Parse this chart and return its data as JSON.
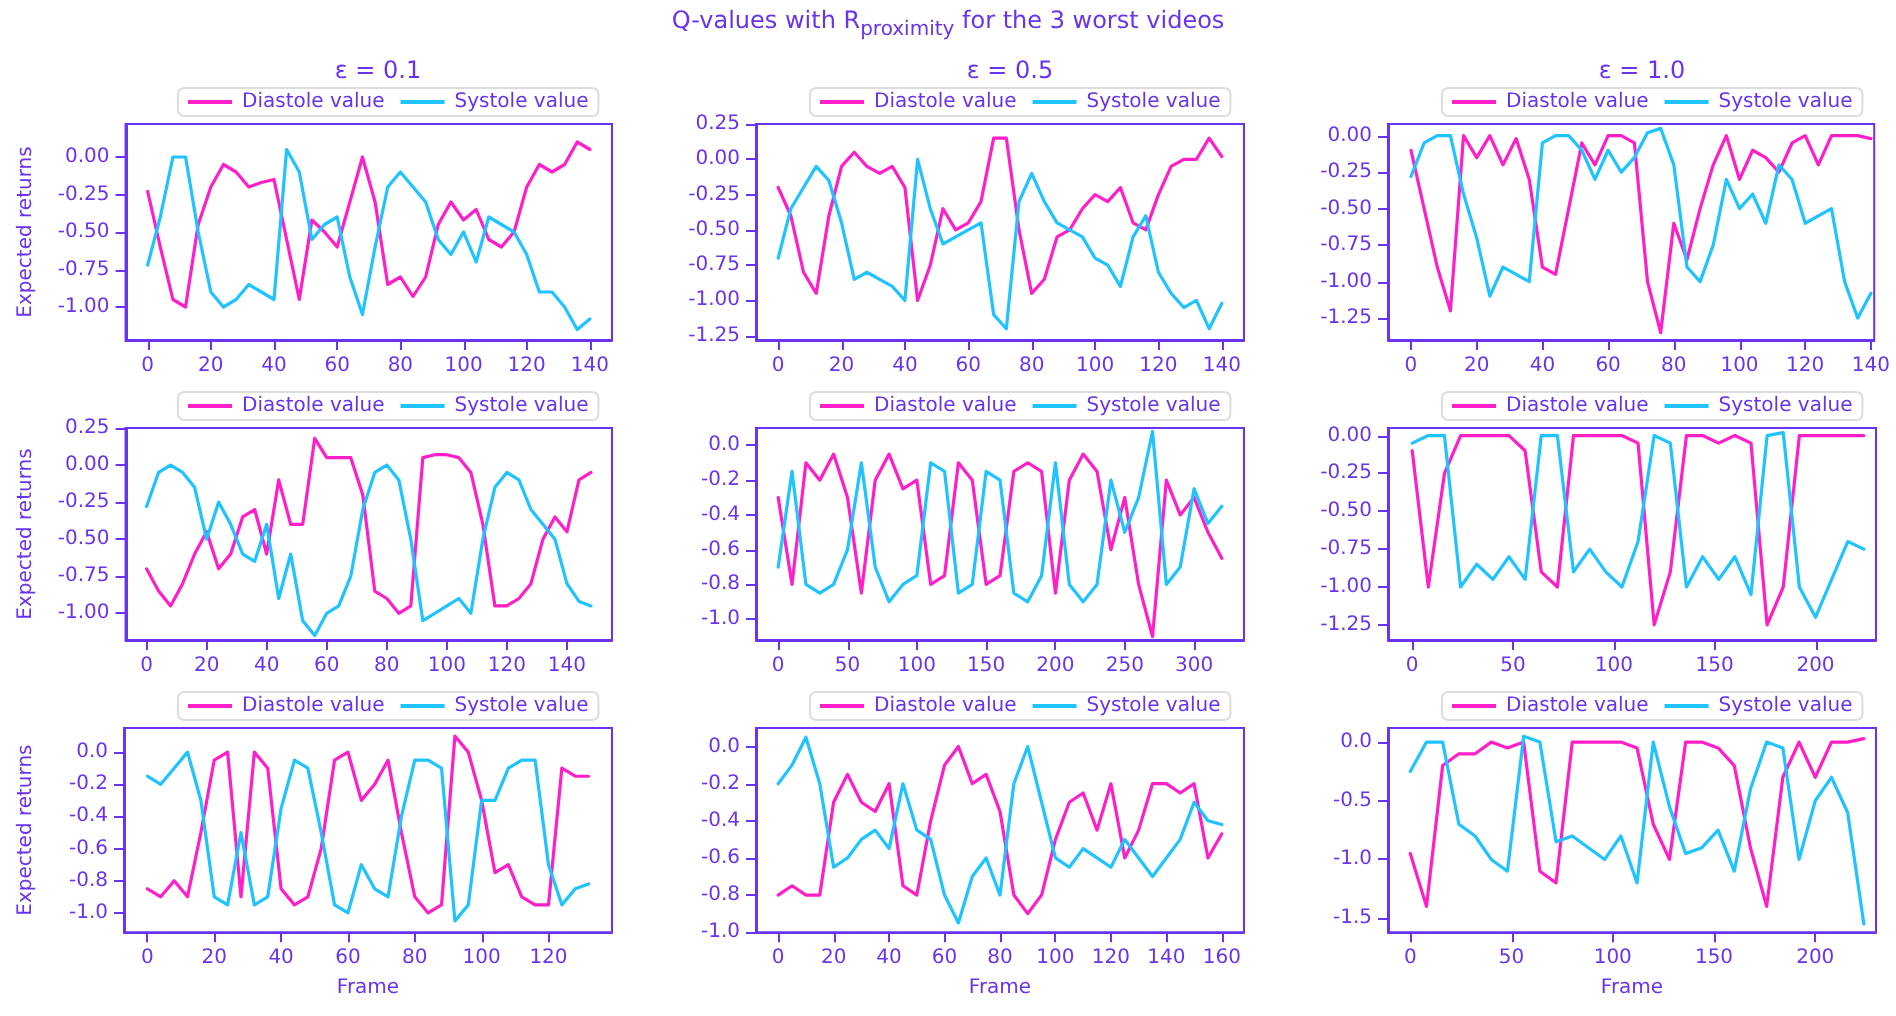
{
  "chart_data": [
    {
      "type": "line",
      "title": "ε = 0.1",
      "ylabel": "Expected returns",
      "legend": "top",
      "grid": false,
      "marker": "none",
      "line_style": "solid",
      "x": [
        0,
        4,
        8,
        12,
        16,
        20,
        24,
        28,
        32,
        36,
        40,
        44,
        48,
        52,
        56,
        60,
        64,
        68,
        72,
        76,
        80,
        84,
        88,
        92,
        96,
        100,
        104,
        108,
        112,
        116,
        120,
        124,
        128,
        132,
        136,
        140
      ],
      "xlim": [
        -7,
        147
      ],
      "xticks": [
        0,
        20,
        40,
        60,
        80,
        100,
        120,
        140
      ],
      "ylim": [
        -1.22,
        0.22
      ],
      "yticks": [
        {
          "value": -1,
          "label": "-1.00"
        },
        {
          "value": -0.75,
          "label": "-0.75"
        },
        {
          "value": -0.5,
          "label": "-0.50"
        },
        {
          "value": -0.25,
          "label": "-0.25"
        },
        {
          "value": 0,
          "label": "0.00"
        }
      ],
      "series": [
        {
          "name": "Diastole value",
          "color": "#ff1ec8",
          "values": [
            -0.23,
            -0.6,
            -0.95,
            -1.0,
            -0.45,
            -0.2,
            -0.05,
            -0.1,
            -0.2,
            -0.17,
            -0.15,
            -0.55,
            -0.95,
            -0.42,
            -0.5,
            -0.6,
            -0.3,
            0.0,
            -0.3,
            -0.85,
            -0.8,
            -0.93,
            -0.8,
            -0.45,
            -0.3,
            -0.42,
            -0.35,
            -0.55,
            -0.6,
            -0.5,
            -0.2,
            -0.05,
            -0.1,
            -0.05,
            0.1,
            0.05
          ]
        },
        {
          "name": "Systole value",
          "color": "#1ec3ff",
          "values": [
            -0.72,
            -0.4,
            0.0,
            0.0,
            -0.5,
            -0.9,
            -1.0,
            -0.95,
            -0.85,
            -0.9,
            -0.95,
            0.05,
            -0.1,
            -0.55,
            -0.45,
            -0.4,
            -0.8,
            -1.05,
            -0.6,
            -0.2,
            -0.1,
            -0.2,
            -0.3,
            -0.55,
            -0.65,
            -0.5,
            -0.7,
            -0.4,
            -0.45,
            -0.5,
            -0.65,
            -0.9,
            -0.9,
            -1.0,
            -1.15,
            -1.08
          ]
        }
      ]
    },
    {
      "type": "line",
      "subtitle": "Q-values with R$_{proximity}$ for the 3 worst videos",
      "title": "ε = 0.5",
      "legend": "top",
      "grid": false,
      "marker": "none",
      "line_style": "solid",
      "x": [
        0,
        4,
        8,
        12,
        16,
        20,
        24,
        28,
        32,
        36,
        40,
        44,
        48,
        52,
        56,
        60,
        64,
        68,
        72,
        76,
        80,
        84,
        88,
        92,
        96,
        100,
        104,
        108,
        112,
        116,
        120,
        124,
        128,
        132,
        136,
        140
      ],
      "xlim": [
        -7,
        147
      ],
      "xticks": [
        0,
        20,
        40,
        60,
        80,
        100,
        120,
        140
      ],
      "ylim": [
        -1.28,
        0.25
      ],
      "yticks": [
        {
          "value": -1.25,
          "label": "-1.25"
        },
        {
          "value": -1,
          "label": "-1.00"
        },
        {
          "value": -0.75,
          "label": "-0.75"
        },
        {
          "value": -0.5,
          "label": "-0.50"
        },
        {
          "value": -0.25,
          "label": "-0.25"
        },
        {
          "value": 0,
          "label": "0.00"
        },
        {
          "value": 0.25,
          "label": "0.25"
        }
      ],
      "series": [
        {
          "name": "Diastole value",
          "color": "#ff1ec8",
          "values": [
            -0.2,
            -0.4,
            -0.8,
            -0.95,
            -0.4,
            -0.05,
            0.05,
            -0.05,
            -0.1,
            -0.05,
            -0.2,
            -1.0,
            -0.75,
            -0.35,
            -0.5,
            -0.45,
            -0.3,
            0.15,
            0.15,
            -0.5,
            -0.95,
            -0.85,
            -0.55,
            -0.5,
            -0.35,
            -0.25,
            -0.3,
            -0.2,
            -0.45,
            -0.5,
            -0.25,
            -0.05,
            0.0,
            0.0,
            0.15,
            0.02
          ]
        },
        {
          "name": "Systole value",
          "color": "#1ec3ff",
          "values": [
            -0.7,
            -0.35,
            -0.2,
            -0.05,
            -0.15,
            -0.45,
            -0.85,
            -0.8,
            -0.85,
            -0.9,
            -1.0,
            0.0,
            -0.35,
            -0.6,
            -0.55,
            -0.5,
            -0.45,
            -1.1,
            -1.2,
            -0.3,
            -0.1,
            -0.3,
            -0.45,
            -0.5,
            -0.55,
            -0.7,
            -0.75,
            -0.9,
            -0.55,
            -0.4,
            -0.8,
            -0.95,
            -1.05,
            -1.0,
            -1.2,
            -1.02
          ]
        }
      ]
    },
    {
      "type": "line",
      "title": "ε = 1.0",
      "legend": "top",
      "grid": false,
      "marker": "none",
      "line_style": "solid",
      "x": [
        0,
        4,
        8,
        12,
        16,
        20,
        24,
        28,
        32,
        36,
        40,
        44,
        48,
        52,
        56,
        60,
        64,
        68,
        72,
        76,
        80,
        84,
        88,
        92,
        96,
        100,
        104,
        108,
        112,
        116,
        120,
        124,
        128,
        132,
        136,
        140
      ],
      "xlim": [
        -7,
        141
      ],
      "xticks": [
        0,
        20,
        40,
        60,
        80,
        100,
        120,
        140
      ],
      "ylim": [
        -1.4,
        0.08
      ],
      "yticks": [
        {
          "value": -1.25,
          "label": "-1.25"
        },
        {
          "value": -1,
          "label": "-1.00"
        },
        {
          "value": -0.75,
          "label": "-0.75"
        },
        {
          "value": -0.5,
          "label": "-0.50"
        },
        {
          "value": -0.25,
          "label": "-0.25"
        },
        {
          "value": 0,
          "label": "0.00"
        }
      ],
      "series": [
        {
          "name": "Diastole value",
          "color": "#ff1ec8",
          "values": [
            -0.1,
            -0.5,
            -0.9,
            -1.2,
            0.0,
            -0.15,
            0.0,
            -0.2,
            -0.02,
            -0.3,
            -0.9,
            -0.95,
            -0.5,
            -0.05,
            -0.2,
            0.0,
            0.0,
            -0.05,
            -1.0,
            -1.35,
            -0.6,
            -0.85,
            -0.5,
            -0.2,
            0.0,
            -0.3,
            -0.1,
            -0.15,
            -0.25,
            -0.05,
            0.0,
            -0.2,
            0.0,
            0.0,
            0.0,
            -0.02
          ]
        },
        {
          "name": "Systole value",
          "color": "#1ec3ff",
          "values": [
            -0.28,
            -0.05,
            0.0,
            0.0,
            -0.4,
            -0.7,
            -1.1,
            -0.9,
            -0.95,
            -1.0,
            -0.05,
            0.0,
            0.0,
            -0.1,
            -0.3,
            -0.1,
            -0.25,
            -0.15,
            0.02,
            0.05,
            -0.2,
            -0.9,
            -1.0,
            -0.75,
            -0.3,
            -0.5,
            -0.4,
            -0.6,
            -0.2,
            -0.3,
            -0.6,
            -0.55,
            -0.5,
            -1.0,
            -1.25,
            -1.08
          ]
        }
      ]
    },
    {
      "type": "line",
      "ylabel": "Expected returns",
      "legend": "top",
      "grid": false,
      "marker": "none",
      "line_style": "solid",
      "x": [
        0,
        4,
        8,
        12,
        16,
        20,
        24,
        28,
        32,
        36,
        40,
        44,
        48,
        52,
        56,
        60,
        64,
        68,
        72,
        76,
        80,
        84,
        88,
        92,
        96,
        100,
        104,
        108,
        112,
        116,
        120,
        124,
        128,
        132,
        136,
        140,
        144,
        148
      ],
      "xlim": [
        -7,
        155
      ],
      "xticks": [
        0,
        20,
        40,
        60,
        80,
        100,
        120,
        140
      ],
      "ylim": [
        -1.18,
        0.25
      ],
      "yticks": [
        {
          "value": -1,
          "label": "-1.00"
        },
        {
          "value": -0.75,
          "label": "-0.75"
        },
        {
          "value": -0.5,
          "label": "-0.50"
        },
        {
          "value": -0.25,
          "label": "-0.25"
        },
        {
          "value": 0,
          "label": "0.00"
        },
        {
          "value": 0.25,
          "label": "0.25"
        }
      ],
      "series": [
        {
          "name": "Diastole value",
          "color": "#ff1ec8",
          "values": [
            -0.7,
            -0.85,
            -0.95,
            -0.8,
            -0.6,
            -0.45,
            -0.7,
            -0.6,
            -0.35,
            -0.3,
            -0.6,
            -0.1,
            -0.4,
            -0.4,
            0.18,
            0.05,
            0.05,
            0.05,
            -0.2,
            -0.85,
            -0.9,
            -1.0,
            -0.95,
            0.05,
            0.07,
            0.07,
            0.05,
            -0.05,
            -0.4,
            -0.95,
            -0.95,
            -0.9,
            -0.8,
            -0.5,
            -0.35,
            -0.45,
            -0.1,
            -0.05
          ]
        },
        {
          "name": "Systole value",
          "color": "#1ec3ff",
          "values": [
            -0.28,
            -0.05,
            0.0,
            -0.05,
            -0.15,
            -0.5,
            -0.25,
            -0.4,
            -0.6,
            -0.65,
            -0.4,
            -0.9,
            -0.6,
            -1.05,
            -1.15,
            -1.0,
            -0.95,
            -0.75,
            -0.3,
            -0.05,
            0.0,
            -0.1,
            -0.5,
            -1.05,
            -1.0,
            -0.95,
            -0.9,
            -1.0,
            -0.5,
            -0.15,
            -0.05,
            -0.1,
            -0.3,
            -0.4,
            -0.5,
            -0.8,
            -0.92,
            -0.95
          ]
        }
      ]
    },
    {
      "type": "line",
      "legend": "top",
      "grid": false,
      "marker": "none",
      "line_style": "solid",
      "x": [
        0,
        10,
        20,
        30,
        40,
        50,
        60,
        70,
        80,
        90,
        100,
        110,
        120,
        130,
        140,
        150,
        160,
        170,
        180,
        190,
        200,
        210,
        220,
        230,
        240,
        250,
        260,
        270,
        280,
        290,
        300,
        310,
        320
      ],
      "xlim": [
        -16,
        336
      ],
      "xticks": [
        0,
        50,
        100,
        150,
        200,
        250,
        300
      ],
      "ylim": [
        -1.12,
        0.1
      ],
      "yticks": [
        {
          "value": -1,
          "label": "-1.0"
        },
        {
          "value": -0.8,
          "label": "-0.8"
        },
        {
          "value": -0.6,
          "label": "-0.6"
        },
        {
          "value": -0.4,
          "label": "-0.4"
        },
        {
          "value": -0.2,
          "label": "-0.2"
        },
        {
          "value": 0,
          "label": "0.0"
        }
      ],
      "series": [
        {
          "name": "Diastole value",
          "color": "#ff1ec8",
          "values": [
            -0.3,
            -0.8,
            -0.1,
            -0.2,
            -0.05,
            -0.3,
            -0.85,
            -0.2,
            -0.05,
            -0.25,
            -0.2,
            -0.8,
            -0.75,
            -0.1,
            -0.2,
            -0.8,
            -0.75,
            -0.15,
            -0.1,
            -0.15,
            -0.85,
            -0.2,
            -0.05,
            -0.15,
            -0.6,
            -0.3,
            -0.8,
            -1.1,
            -0.2,
            -0.4,
            -0.3,
            -0.5,
            -0.65
          ]
        },
        {
          "name": "Systole value",
          "color": "#1ec3ff",
          "values": [
            -0.7,
            -0.15,
            -0.8,
            -0.85,
            -0.8,
            -0.6,
            -0.1,
            -0.7,
            -0.9,
            -0.8,
            -0.75,
            -0.1,
            -0.15,
            -0.85,
            -0.8,
            -0.15,
            -0.2,
            -0.85,
            -0.9,
            -0.75,
            -0.1,
            -0.8,
            -0.9,
            -0.8,
            -0.2,
            -0.5,
            -0.3,
            0.08,
            -0.8,
            -0.7,
            -0.25,
            -0.45,
            -0.35
          ]
        }
      ]
    },
    {
      "type": "line",
      "legend": "top",
      "grid": false,
      "marker": "none",
      "line_style": "solid",
      "x": [
        0,
        8,
        16,
        24,
        32,
        40,
        48,
        56,
        64,
        72,
        80,
        88,
        96,
        104,
        112,
        120,
        128,
        136,
        144,
        152,
        160,
        168,
        176,
        184,
        192,
        200,
        208,
        216,
        224
      ],
      "xlim": [
        -12,
        230
      ],
      "xticks": [
        0,
        50,
        100,
        150,
        200
      ],
      "ylim": [
        -1.35,
        0.05
      ],
      "yticks": [
        {
          "value": -1.25,
          "label": "-1.25"
        },
        {
          "value": -1,
          "label": "-1.00"
        },
        {
          "value": -0.75,
          "label": "-0.75"
        },
        {
          "value": -0.5,
          "label": "-0.50"
        },
        {
          "value": -0.25,
          "label": "-0.25"
        },
        {
          "value": 0,
          "label": "0.00"
        }
      ],
      "series": [
        {
          "name": "Diastole value",
          "color": "#ff1ec8",
          "values": [
            -0.1,
            -1.0,
            -0.25,
            0.0,
            0.0,
            0.0,
            0.0,
            -0.1,
            -0.9,
            -1.0,
            0.0,
            0.0,
            0.0,
            0.0,
            -0.05,
            -1.25,
            -0.9,
            0.0,
            0.0,
            -0.05,
            0.0,
            -0.05,
            -1.25,
            -1.0,
            0.0,
            0.0,
            0.0,
            0.0,
            0.0
          ]
        },
        {
          "name": "Systole value",
          "color": "#1ec3ff",
          "values": [
            -0.05,
            0.0,
            0.0,
            -1.0,
            -0.85,
            -0.95,
            -0.8,
            -0.95,
            0.0,
            0.0,
            -0.9,
            -0.75,
            -0.9,
            -1.0,
            -0.7,
            0.0,
            -0.05,
            -1.0,
            -0.8,
            -0.95,
            -0.8,
            -1.05,
            0.0,
            0.02,
            -1.0,
            -1.2,
            -0.95,
            -0.7,
            -0.75
          ]
        }
      ]
    },
    {
      "type": "line",
      "ylabel": "Expected returns",
      "xlabel": "Frame",
      "legend": "top",
      "grid": false,
      "marker": "none",
      "line_style": "solid",
      "x": [
        0,
        4,
        8,
        12,
        16,
        20,
        24,
        28,
        32,
        36,
        40,
        44,
        48,
        52,
        56,
        60,
        64,
        68,
        72,
        76,
        80,
        84,
        88,
        92,
        96,
        100,
        104,
        108,
        112,
        116,
        120,
        124,
        128,
        132
      ],
      "xlim": [
        -7,
        139
      ],
      "xticks": [
        0,
        20,
        40,
        60,
        80,
        100,
        120
      ],
      "ylim": [
        -1.12,
        0.15
      ],
      "yticks": [
        {
          "value": -1,
          "label": "-1.0"
        },
        {
          "value": -0.8,
          "label": "-0.8"
        },
        {
          "value": -0.6,
          "label": "-0.6"
        },
        {
          "value": -0.4,
          "label": "-0.4"
        },
        {
          "value": -0.2,
          "label": "-0.2"
        },
        {
          "value": 0,
          "label": "0.0"
        }
      ],
      "series": [
        {
          "name": "Diastole value",
          "color": "#ff1ec8",
          "values": [
            -0.85,
            -0.9,
            -0.8,
            -0.9,
            -0.5,
            -0.05,
            0.0,
            -0.9,
            0.0,
            -0.1,
            -0.85,
            -0.95,
            -0.9,
            -0.6,
            -0.05,
            0.0,
            -0.3,
            -0.2,
            -0.05,
            -0.5,
            -0.9,
            -1.0,
            -0.95,
            0.1,
            0.0,
            -0.3,
            -0.75,
            -0.7,
            -0.9,
            -0.95,
            -0.95,
            -0.1,
            -0.15,
            -0.15
          ]
        },
        {
          "name": "Systole value",
          "color": "#1ec3ff",
          "values": [
            -0.15,
            -0.2,
            -0.1,
            0.0,
            -0.3,
            -0.9,
            -0.95,
            -0.5,
            -0.95,
            -0.9,
            -0.35,
            -0.05,
            -0.1,
            -0.5,
            -0.95,
            -1.0,
            -0.7,
            -0.85,
            -0.9,
            -0.4,
            -0.05,
            -0.05,
            -0.1,
            -1.05,
            -0.95,
            -0.3,
            -0.3,
            -0.1,
            -0.05,
            -0.05,
            -0.7,
            -0.95,
            -0.85,
            -0.82
          ]
        }
      ]
    },
    {
      "type": "line",
      "xlabel": "Frame",
      "legend": "top",
      "grid": false,
      "marker": "none",
      "line_style": "solid",
      "x": [
        0,
        5,
        10,
        15,
        20,
        25,
        30,
        35,
        40,
        45,
        50,
        55,
        60,
        65,
        70,
        75,
        80,
        85,
        90,
        95,
        100,
        105,
        110,
        115,
        120,
        125,
        130,
        135,
        140,
        145,
        150,
        155,
        160
      ],
      "xlim": [
        -8,
        168
      ],
      "xticks": [
        0,
        20,
        40,
        60,
        80,
        100,
        120,
        140,
        160
      ],
      "ylim": [
        -1.0,
        0.1
      ],
      "yticks": [
        {
          "value": -1,
          "label": "-1.0"
        },
        {
          "value": -0.8,
          "label": "-0.8"
        },
        {
          "value": -0.6,
          "label": "-0.6"
        },
        {
          "value": -0.4,
          "label": "-0.4"
        },
        {
          "value": -0.2,
          "label": "-0.2"
        },
        {
          "value": 0,
          "label": "0.0"
        }
      ],
      "series": [
        {
          "name": "Diastole value",
          "color": "#ff1ec8",
          "values": [
            -0.8,
            -0.75,
            -0.8,
            -0.8,
            -0.3,
            -0.15,
            -0.3,
            -0.35,
            -0.2,
            -0.75,
            -0.8,
            -0.4,
            -0.1,
            0.0,
            -0.2,
            -0.15,
            -0.35,
            -0.8,
            -0.9,
            -0.8,
            -0.5,
            -0.3,
            -0.25,
            -0.45,
            -0.2,
            -0.6,
            -0.45,
            -0.2,
            -0.2,
            -0.25,
            -0.2,
            -0.6,
            -0.47
          ]
        },
        {
          "name": "Systole value",
          "color": "#1ec3ff",
          "values": [
            -0.2,
            -0.1,
            0.05,
            -0.2,
            -0.65,
            -0.6,
            -0.5,
            -0.45,
            -0.55,
            -0.2,
            -0.45,
            -0.5,
            -0.8,
            -0.95,
            -0.7,
            -0.6,
            -0.8,
            -0.2,
            0.0,
            -0.3,
            -0.6,
            -0.65,
            -0.55,
            -0.6,
            -0.65,
            -0.5,
            -0.6,
            -0.7,
            -0.6,
            -0.5,
            -0.3,
            -0.4,
            -0.42
          ]
        }
      ]
    },
    {
      "type": "line",
      "xlabel": "Frame",
      "legend": "top",
      "grid": false,
      "marker": "none",
      "line_style": "solid",
      "x": [
        0,
        8,
        16,
        24,
        32,
        40,
        48,
        56,
        64,
        72,
        80,
        88,
        96,
        104,
        112,
        120,
        128,
        136,
        144,
        152,
        160,
        168,
        176,
        184,
        192,
        200,
        208,
        216,
        224
      ],
      "xlim": [
        -11,
        230
      ],
      "xticks": [
        0,
        50,
        100,
        150,
        200
      ],
      "ylim": [
        -1.62,
        0.12
      ],
      "yticks": [
        {
          "value": -1.5,
          "label": "-1.5"
        },
        {
          "value": -1,
          "label": "-1.0"
        },
        {
          "value": -0.5,
          "label": "-0.5"
        },
        {
          "value": 0,
          "label": "0.0"
        }
      ],
      "series": [
        {
          "name": "Diastole value",
          "color": "#ff1ec8",
          "values": [
            -0.95,
            -1.4,
            -0.2,
            -0.1,
            -0.1,
            0.0,
            -0.05,
            0.0,
            -1.1,
            -1.2,
            0.0,
            0.0,
            0.0,
            0.0,
            -0.05,
            -0.7,
            -1.0,
            0.0,
            0.0,
            -0.05,
            -0.2,
            -0.9,
            -1.4,
            -0.3,
            0.0,
            -0.3,
            0.0,
            0.0,
            0.03
          ]
        },
        {
          "name": "Systole value",
          "color": "#1ec3ff",
          "values": [
            -0.25,
            0.0,
            0.0,
            -0.7,
            -0.8,
            -1.0,
            -1.1,
            0.05,
            0.0,
            -0.85,
            -0.8,
            -0.9,
            -1.0,
            -0.8,
            -1.2,
            0.0,
            -0.55,
            -0.95,
            -0.9,
            -0.75,
            -1.1,
            -0.4,
            0.0,
            -0.05,
            -1.0,
            -0.5,
            -0.3,
            -0.6,
            -1.55
          ]
        }
      ]
    }
  ]
}
